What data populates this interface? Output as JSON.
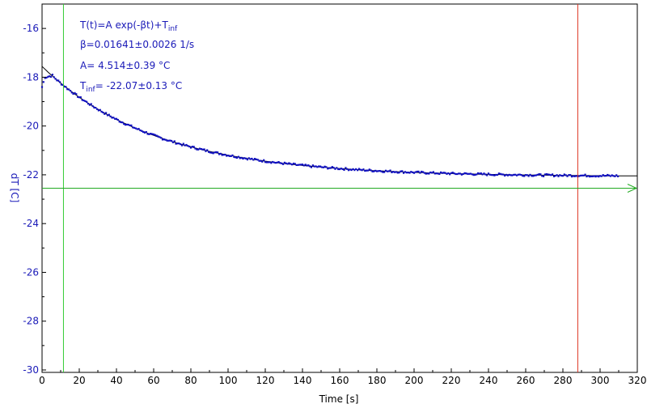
{
  "chart_data": {
    "type": "scatter",
    "xlabel": "Time [s]",
    "ylabel": "dT [C]",
    "xlim": [
      0,
      320
    ],
    "ylim": [
      -30.1,
      -15.0
    ],
    "x_ticks": [
      "0",
      "20",
      "40",
      "60",
      "80",
      "100",
      "120",
      "140",
      "160",
      "180",
      "200",
      "220",
      "240",
      "260",
      "280",
      "300",
      "320"
    ],
    "y_ticks": [
      "-16",
      "-18",
      "-20",
      "-22",
      "-24",
      "-26",
      "-28",
      "-30"
    ],
    "grid": false,
    "annotations": {
      "model_main": "T(t)=A exp(-βt)+T",
      "model_sub": "inf",
      "beta": "β=0.01641±0.0026 1/s",
      "amplitude": "A= 4.514±0.39 °C",
      "tinf_main": "T",
      "tinf_sub": "inf",
      "tinf_value": "= -22.07±0.13 °C"
    },
    "fit": {
      "A": 4.514,
      "beta": 0.01641,
      "T_inf": -22.07
    },
    "cursors": {
      "start_time": 11.5,
      "end_time": 288,
      "baseline": -22.55
    },
    "data_range": {
      "t_min": 0,
      "t_max": 310
    },
    "colors": {
      "data": "#1010c0",
      "fit": "#000000",
      "start_cursor": "#33cc33",
      "end_cursor": "#dd3322",
      "baseline": "#22aa22",
      "labels": "#1a1ab8"
    }
  }
}
